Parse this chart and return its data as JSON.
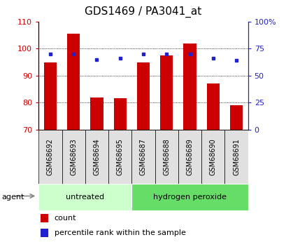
{
  "title": "GDS1469 / PA3041_at",
  "samples": [
    "GSM68692",
    "GSM68693",
    "GSM68694",
    "GSM68695",
    "GSM68687",
    "GSM68688",
    "GSM68689",
    "GSM68690",
    "GSM68691"
  ],
  "bar_heights": [
    95.0,
    105.5,
    82.0,
    81.5,
    95.0,
    97.5,
    102.0,
    87.0,
    79.0
  ],
  "blue_dots_pct": [
    70,
    70,
    65,
    66,
    70,
    70,
    70,
    66,
    64
  ],
  "bar_bottom": 70,
  "ylim_left": [
    70,
    110
  ],
  "ylim_right": [
    0,
    100
  ],
  "yticks_left": [
    70,
    80,
    90,
    100,
    110
  ],
  "yticks_right": [
    0,
    25,
    50,
    75,
    100
  ],
  "yticklabels_right": [
    "0",
    "25",
    "50",
    "75",
    "100%"
  ],
  "bar_color": "#cc0000",
  "dot_color": "#2222cc",
  "groups": [
    {
      "label": "untreated",
      "start": 0,
      "end": 4,
      "color": "#ccffcc",
      "dark_color": "#88dd88"
    },
    {
      "label": "hydrogen peroxide",
      "start": 4,
      "end": 9,
      "color": "#66dd66",
      "dark_color": "#44bb44"
    }
  ],
  "agent_label": "agent",
  "legend_count_label": "count",
  "legend_pct_label": "percentile rank within the sample",
  "title_fontsize": 11,
  "tick_fontsize": 8,
  "label_fontsize": 8,
  "sample_fontsize": 7
}
